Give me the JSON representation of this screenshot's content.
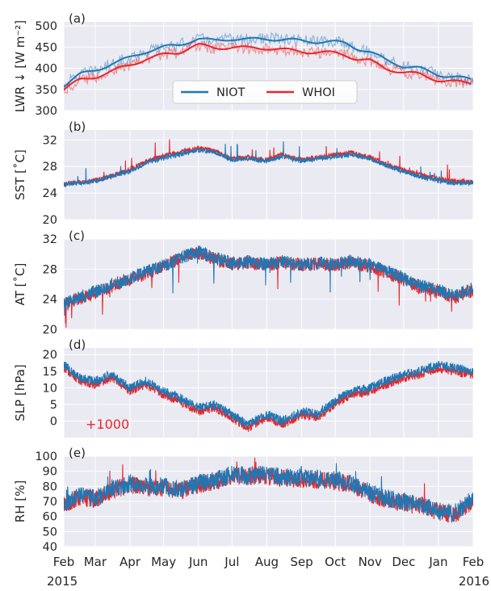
{
  "figure": {
    "colors": {
      "panel_bg": "#eaeaf2",
      "grid": "#ffffff",
      "niot": "#1f77b4",
      "whoi": "#e8272b",
      "text": "#262626"
    }
  },
  "chart_data": [
    {
      "type": "line",
      "panel_label": "(a)",
      "ylabel": "LWR ↓ [W m⁻²]",
      "ylim": [
        300,
        510
      ],
      "yticks": [
        300,
        350,
        400,
        450,
        500
      ],
      "legend": {
        "placement": "lower-center",
        "entries": [
          "NIOT",
          "WHOI"
        ]
      },
      "series": [
        {
          "name": "NIOT",
          "color": "#1f77b4",
          "x": [
            "2015-02-01",
            "2015-02-15",
            "2015-03-01",
            "2015-03-15",
            "2015-04-01",
            "2015-04-15",
            "2015-05-01",
            "2015-05-15",
            "2015-05-25",
            "2015-06-01",
            "2015-06-15",
            "2015-07-01",
            "2015-07-15",
            "2015-08-01",
            "2015-08-15",
            "2015-09-01",
            "2015-09-15",
            "2015-10-01",
            "2015-10-10",
            "2015-10-20",
            "2015-11-01",
            "2015-11-15",
            "2015-12-01",
            "2015-12-15",
            "2016-01-01",
            "2016-01-15",
            "2016-02-01"
          ],
          "values": [
            360,
            385,
            395,
            410,
            425,
            440,
            450,
            455,
            465,
            470,
            465,
            470,
            468,
            470,
            468,
            465,
            463,
            462,
            460,
            448,
            438,
            420,
            405,
            400,
            385,
            380,
            372
          ]
        },
        {
          "name": "WHOI",
          "color": "#e8272b",
          "x": [
            "2015-02-01",
            "2015-02-15",
            "2015-03-01",
            "2015-03-15",
            "2015-04-01",
            "2015-04-15",
            "2015-05-01",
            "2015-05-15",
            "2015-05-25",
            "2015-06-01",
            "2015-06-15",
            "2015-07-01",
            "2015-07-15",
            "2015-08-01",
            "2015-08-15",
            "2015-09-01",
            "2015-09-15",
            "2015-10-01",
            "2015-10-10",
            "2015-10-20",
            "2015-11-01",
            "2015-11-15",
            "2015-12-01",
            "2015-12-15",
            "2016-01-01",
            "2016-01-15",
            "2016-02-01"
          ],
          "values": [
            350,
            372,
            380,
            392,
            408,
            422,
            432,
            438,
            450,
            455,
            448,
            450,
            448,
            448,
            444,
            440,
            438,
            436,
            432,
            422,
            418,
            400,
            390,
            386,
            372,
            368,
            365
          ]
        }
      ]
    },
    {
      "type": "line",
      "panel_label": "(b)",
      "ylabel": "SST [˚C]",
      "ylim": [
        20,
        33.5
      ],
      "yticks": [
        20,
        24,
        28,
        32
      ],
      "series": [
        {
          "name": "NIOT",
          "color": "#1f77b4",
          "x": [
            "2015-02-01",
            "2015-03-01",
            "2015-04-01",
            "2015-04-15",
            "2015-05-01",
            "2015-05-15",
            "2015-06-01",
            "2015-06-15",
            "2015-07-01",
            "2015-07-15",
            "2015-08-01",
            "2015-08-15",
            "2015-09-01",
            "2015-09-15",
            "2015-10-01",
            "2015-10-15",
            "2015-11-01",
            "2015-11-15",
            "2015-12-01",
            "2015-12-15",
            "2016-01-01",
            "2016-01-15",
            "2016-02-01"
          ],
          "values": [
            25.3,
            25.8,
            27.3,
            28.5,
            29.3,
            29.8,
            30.5,
            30.2,
            29.0,
            29.2,
            28.8,
            29.5,
            28.8,
            29.2,
            29.5,
            29.8,
            29.2,
            28.2,
            27.2,
            26.5,
            25.8,
            25.5,
            25.5
          ]
        },
        {
          "name": "WHOI",
          "color": "#e8272b",
          "x": [
            "2015-02-01",
            "2015-03-01",
            "2015-04-01",
            "2015-04-15",
            "2015-05-01",
            "2015-05-15",
            "2015-06-01",
            "2015-06-15",
            "2015-07-01",
            "2015-07-15",
            "2015-08-01",
            "2015-08-15",
            "2015-09-01",
            "2015-09-15",
            "2015-10-01",
            "2015-10-15",
            "2015-11-01",
            "2015-11-15",
            "2015-12-01",
            "2015-12-15",
            "2016-01-01",
            "2016-01-15",
            "2016-02-01"
          ],
          "values": [
            25.4,
            25.9,
            27.5,
            28.7,
            29.6,
            30.1,
            30.8,
            30.4,
            29.2,
            29.4,
            29.0,
            29.8,
            29.0,
            29.4,
            29.8,
            30.1,
            29.4,
            28.4,
            27.4,
            26.8,
            26.2,
            25.8,
            25.7
          ]
        }
      ]
    },
    {
      "type": "line",
      "panel_label": "(c)",
      "ylabel": "AT [˚C]",
      "ylim": [
        20,
        32
      ],
      "yticks": [
        20,
        24,
        28,
        32
      ],
      "series": [
        {
          "name": "NIOT",
          "color": "#1f77b4",
          "x": [
            "2015-02-01",
            "2015-03-01",
            "2015-04-01",
            "2015-05-01",
            "2015-05-15",
            "2015-06-01",
            "2015-06-15",
            "2015-07-01",
            "2015-07-15",
            "2015-08-01",
            "2015-08-15",
            "2015-09-01",
            "2015-09-15",
            "2015-10-01",
            "2015-10-15",
            "2015-11-01",
            "2015-11-15",
            "2015-12-01",
            "2015-12-15",
            "2016-01-01",
            "2016-01-15",
            "2016-02-01"
          ],
          "values": [
            23.5,
            25.0,
            26.8,
            28.5,
            29.5,
            30.3,
            29.5,
            28.8,
            29.0,
            28.6,
            29.0,
            28.6,
            28.8,
            28.7,
            29.0,
            28.5,
            27.8,
            26.8,
            25.8,
            25.2,
            24.5,
            25.5
          ]
        },
        {
          "name": "WHOI",
          "color": "#e8272b",
          "x": [
            "2015-02-01",
            "2015-03-01",
            "2015-04-01",
            "2015-05-01",
            "2015-05-15",
            "2015-06-01",
            "2015-06-15",
            "2015-07-01",
            "2015-07-15",
            "2015-08-01",
            "2015-08-15",
            "2015-09-01",
            "2015-09-15",
            "2015-10-01",
            "2015-10-15",
            "2015-11-01",
            "2015-11-15",
            "2015-12-01",
            "2015-12-15",
            "2016-01-01",
            "2016-01-15",
            "2016-02-01"
          ],
          "values": [
            23.3,
            24.8,
            26.6,
            28.4,
            29.4,
            30.2,
            29.4,
            28.6,
            28.9,
            28.4,
            28.9,
            28.5,
            28.7,
            28.6,
            28.9,
            28.3,
            27.6,
            26.6,
            25.6,
            25.0,
            24.2,
            25.2
          ]
        }
      ]
    },
    {
      "type": "line",
      "panel_label": "(d)",
      "ylabel": "SLP [hPa]",
      "annotation": "+1000",
      "ylim": [
        -5,
        22
      ],
      "yticks": [
        0,
        5,
        10,
        15,
        20
      ],
      "series": [
        {
          "name": "NIOT",
          "color": "#1f77b4",
          "x": [
            "2015-02-01",
            "2015-02-15",
            "2015-03-01",
            "2015-03-15",
            "2015-04-01",
            "2015-04-15",
            "2015-05-01",
            "2015-05-15",
            "2015-06-01",
            "2015-06-15",
            "2015-07-01",
            "2015-07-15",
            "2015-08-01",
            "2015-08-15",
            "2015-09-01",
            "2015-09-15",
            "2015-10-01",
            "2015-10-15",
            "2015-11-01",
            "2015-11-15",
            "2015-12-01",
            "2015-12-15",
            "2016-01-01",
            "2016-01-15",
            "2016-02-01"
          ],
          "values": [
            17,
            13,
            12,
            14,
            10,
            12,
            9,
            7,
            4,
            5,
            2,
            -1,
            2,
            0,
            3,
            2,
            6,
            9,
            10,
            12,
            14,
            15,
            17,
            16,
            15
          ]
        },
        {
          "name": "WHOI",
          "color": "#e8272b",
          "x": [
            "2015-02-01",
            "2015-02-15",
            "2015-03-01",
            "2015-03-15",
            "2015-04-01",
            "2015-04-15",
            "2015-05-01",
            "2015-05-15",
            "2015-06-01",
            "2015-06-15",
            "2015-07-01",
            "2015-07-15",
            "2015-08-01",
            "2015-08-15",
            "2015-09-01",
            "2015-09-15",
            "2015-10-01",
            "2015-10-15",
            "2015-11-01",
            "2015-11-15",
            "2015-12-01",
            "2015-12-15",
            "2016-01-01",
            "2016-01-15",
            "2016-02-01"
          ],
          "values": [
            16,
            12,
            11,
            13,
            9,
            11,
            8,
            6,
            3,
            4,
            1,
            -2,
            1,
            -1,
            2,
            1,
            5,
            8,
            9,
            11,
            13,
            14,
            16,
            15,
            14
          ]
        }
      ]
    },
    {
      "type": "line",
      "panel_label": "(e)",
      "ylabel": "RH [%]",
      "ylim": [
        40,
        100
      ],
      "yticks": [
        40,
        50,
        60,
        70,
        80,
        90,
        100
      ],
      "series": [
        {
          "name": "NIOT",
          "color": "#1f77b4",
          "x": [
            "2015-02-01",
            "2015-02-15",
            "2015-03-01",
            "2015-03-15",
            "2015-04-01",
            "2015-04-15",
            "2015-05-01",
            "2015-05-15",
            "2015-06-01",
            "2015-06-15",
            "2015-07-01",
            "2015-07-15",
            "2015-08-01",
            "2015-08-15",
            "2015-09-01",
            "2015-09-15",
            "2015-10-01",
            "2015-10-15",
            "2015-11-01",
            "2015-11-15",
            "2015-12-01",
            "2015-12-15",
            "2016-01-01",
            "2016-01-15",
            "2016-02-01"
          ],
          "values": [
            68,
            74,
            72,
            78,
            82,
            80,
            80,
            78,
            82,
            84,
            88,
            87,
            88,
            86,
            86,
            85,
            84,
            82,
            76,
            72,
            70,
            68,
            64,
            62,
            72
          ]
        },
        {
          "name": "WHOI",
          "color": "#e8272b",
          "x": [
            "2015-02-01",
            "2015-02-15",
            "2015-03-01",
            "2015-03-15",
            "2015-04-01",
            "2015-04-15",
            "2015-05-01",
            "2015-05-15",
            "2015-06-01",
            "2015-06-15",
            "2015-07-01",
            "2015-07-15",
            "2015-08-01",
            "2015-08-15",
            "2015-09-01",
            "2015-09-15",
            "2015-10-01",
            "2015-10-15",
            "2015-11-01",
            "2015-11-15",
            "2015-12-01",
            "2015-12-15",
            "2016-01-01",
            "2016-01-15",
            "2016-02-01"
          ],
          "values": [
            67,
            73,
            71,
            77,
            81,
            79,
            79,
            77,
            81,
            83,
            87,
            86,
            87,
            85,
            85,
            84,
            83,
            81,
            75,
            71,
            69,
            67,
            63,
            61,
            70
          ]
        }
      ]
    }
  ],
  "x_axis": {
    "start": "2015-02-01",
    "end": "2016-02-01",
    "ticks": [
      {
        "date": "2015-02-01",
        "label": "Feb",
        "year": "2015"
      },
      {
        "date": "2015-03-01",
        "label": "Mar"
      },
      {
        "date": "2015-04-01",
        "label": "Apr"
      },
      {
        "date": "2015-05-01",
        "label": "May"
      },
      {
        "date": "2015-06-01",
        "label": "Jun"
      },
      {
        "date": "2015-07-01",
        "label": "Jul"
      },
      {
        "date": "2015-08-01",
        "label": "Aug"
      },
      {
        "date": "2015-09-01",
        "label": "Sep"
      },
      {
        "date": "2015-10-01",
        "label": "Oct"
      },
      {
        "date": "2015-11-01",
        "label": "Nov"
      },
      {
        "date": "2015-12-01",
        "label": "Dec"
      },
      {
        "date": "2016-01-01",
        "label": "Jan"
      },
      {
        "date": "2016-02-01",
        "label": "Feb",
        "year": "2016"
      }
    ]
  }
}
